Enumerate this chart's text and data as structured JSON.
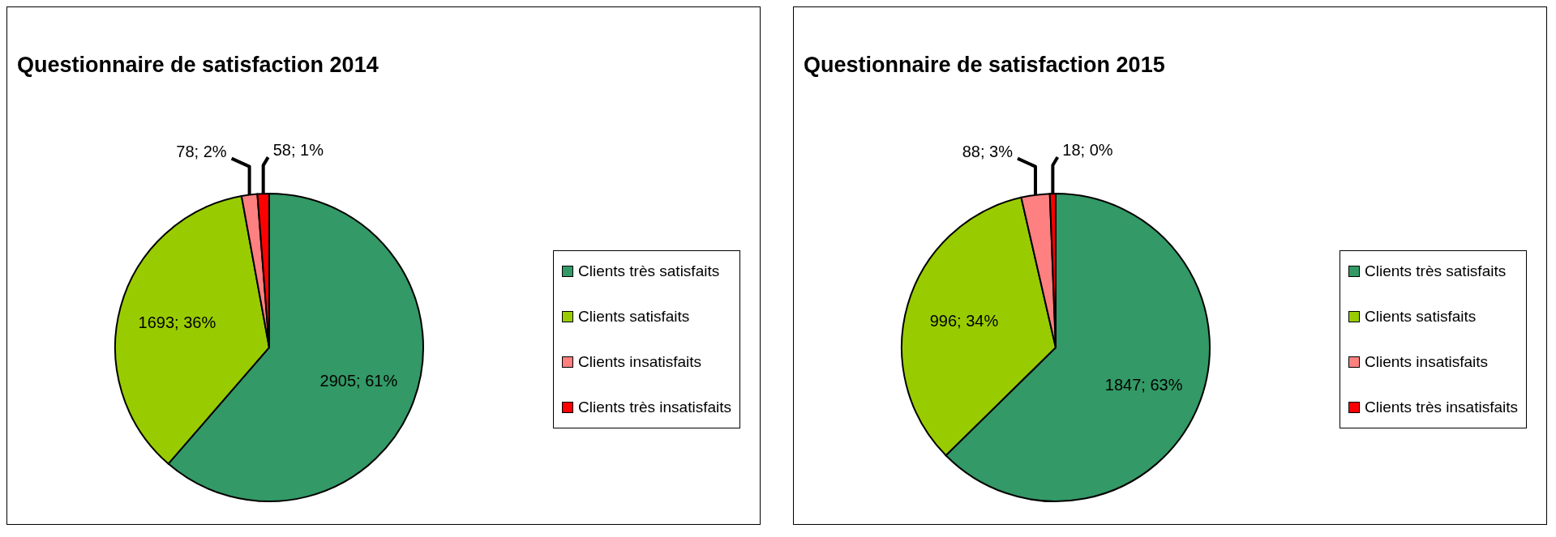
{
  "chart_data": [
    {
      "type": "pie",
      "title": "Questionnaire de satisfaction 2014",
      "categories": [
        "Clients très satisfaits",
        "Clients satisfaits",
        "Clients insatisfaits",
        "Clients très insatisfaits"
      ],
      "values": [
        2905,
        1693,
        78,
        58
      ],
      "colors": [
        "#339966",
        "#99cc00",
        "#ff8080",
        "#ff0000"
      ],
      "value_labels": [
        "2905; 61%",
        "1693; 36%",
        "78; 2%",
        "58; 1%"
      ],
      "legend": "right"
    },
    {
      "type": "pie",
      "title": "Questionnaire de satisfaction 2015",
      "categories": [
        "Clients très satisfaits",
        "Clients satisfaits",
        "Clients insatisfaits",
        "Clients très insatisfaits"
      ],
      "values": [
        1847,
        996,
        88,
        18
      ],
      "colors": [
        "#339966",
        "#99cc00",
        "#ff8080",
        "#ff0000"
      ],
      "value_labels": [
        "1847; 63%",
        "996; 34%",
        "88; 3%",
        "18; 0%"
      ],
      "legend": "right"
    }
  ]
}
